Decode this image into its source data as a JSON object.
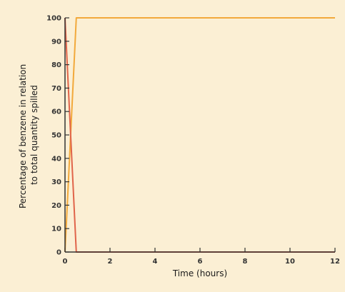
{
  "chart_data": {
    "type": "line",
    "xlabel": "Time (hours)",
    "ylabel_lines": [
      "Percentage of benzene in relation",
      "to total quantity spilled"
    ],
    "xlim": [
      0,
      12
    ],
    "ylim": [
      0,
      100
    ],
    "x_ticks": [
      0,
      2,
      4,
      6,
      8,
      10,
      12
    ],
    "y_ticks": [
      0,
      10,
      20,
      30,
      40,
      50,
      60,
      70,
      80,
      90,
      100
    ],
    "grid": false,
    "series": [
      {
        "color": "#f2a93b",
        "x": [
          0,
          0.5,
          12
        ],
        "y": [
          0,
          100,
          100
        ]
      },
      {
        "color": "#e0644a",
        "x": [
          0,
          0.5,
          12
        ],
        "y": [
          100,
          0,
          0
        ]
      }
    ]
  },
  "colors": {
    "background": "#fbefd4",
    "axis": "#333333"
  }
}
